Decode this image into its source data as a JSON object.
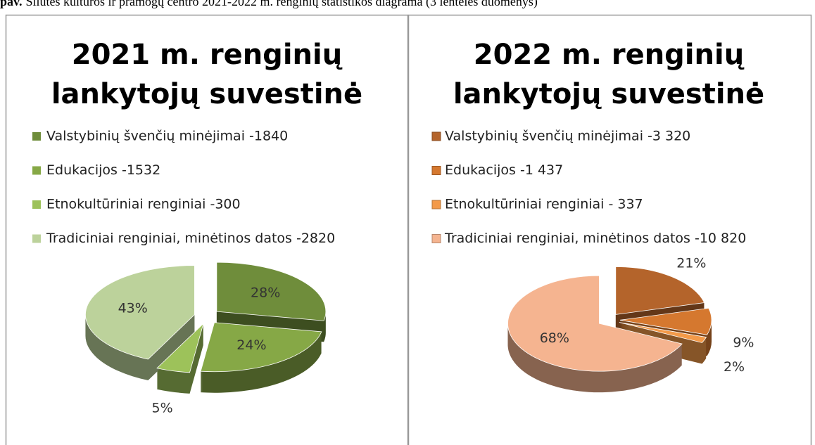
{
  "caption": {
    "label": "pav.",
    "text": "Šilutės kultūros ir pramogų centro 2021-2022 m. renginių statistikos diagrama (3 lentelės duomenys)"
  },
  "chart_data": [
    {
      "type": "pie",
      "title": [
        "2021 m. renginių",
        "lankytojų  suvestinė"
      ],
      "categories": [
        "Valstybinių švenčių minėjimai -1840",
        "Edukacijos -1532",
        "Etnokultūriniai renginiai -300",
        "Tradiciniai renginiai, minėtinos datos -2820"
      ],
      "values": [
        28,
        24,
        5,
        43
      ],
      "value_labels": [
        "28%",
        "24%",
        "5%",
        "43%"
      ],
      "colors": [
        "#6f8d3b",
        "#86a846",
        "#9dc25a",
        "#bcd29b"
      ]
    },
    {
      "type": "pie",
      "title": [
        "2022 m. renginių",
        "lankytojų  suvestinė"
      ],
      "categories": [
        "Valstybinių švenčių minėjimai -3 320",
        "Edukacijos -1 437",
        "Etnokultūriniai renginiai - 337",
        "Tradiciniai renginiai, minėtinos datos -10 820"
      ],
      "values": [
        21,
        9,
        2,
        68
      ],
      "value_labels": [
        "21%",
        "9%",
        "2%",
        "68%"
      ],
      "colors": [
        "#b4642b",
        "#d5782f",
        "#f39a49",
        "#f5b490"
      ]
    }
  ]
}
